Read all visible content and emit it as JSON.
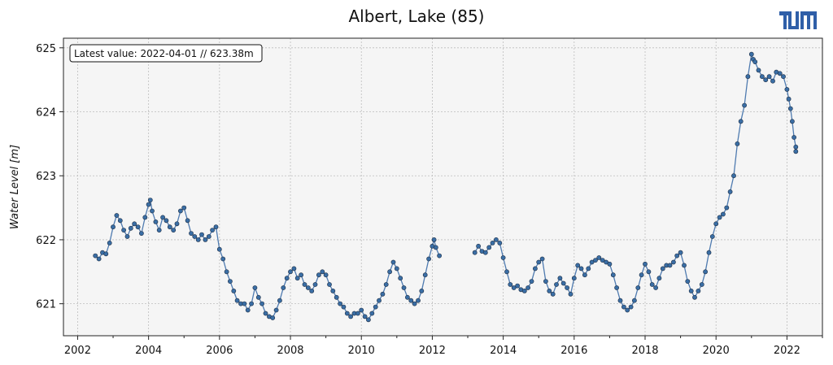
{
  "chart_data": {
    "type": "scatter",
    "title": "Albert, Lake (85)",
    "xlabel": "",
    "ylabel": "Water Level [m]",
    "annotation": "Latest value: 2022-04-01 // 623.38m",
    "xlim": [
      2001.6,
      2023.0
    ],
    "ylim": [
      620.5,
      625.15
    ],
    "x_ticks": [
      2002,
      2004,
      2006,
      2008,
      2010,
      2012,
      2014,
      2016,
      2018,
      2020,
      2022
    ],
    "y_ticks": [
      621,
      622,
      623,
      624,
      625
    ],
    "grid": true,
    "colors": {
      "line": "#4f7bb0",
      "marker": "#3a6ea5",
      "marker_edge": "#1f2f45",
      "axes_bg": "#f5f5f5",
      "grid": "#bdbdbd"
    },
    "series": [
      {
        "segments": [
          [
            [
              2002.5,
              621.75
            ],
            [
              2002.6,
              621.7
            ],
            [
              2002.7,
              621.8
            ],
            [
              2002.8,
              621.78
            ],
            [
              2002.9,
              621.95
            ],
            [
              2003.0,
              622.2
            ],
            [
              2003.1,
              622.38
            ],
            [
              2003.2,
              622.3
            ],
            [
              2003.3,
              622.15
            ],
            [
              2003.4,
              622.05
            ],
            [
              2003.5,
              622.18
            ],
            [
              2003.6,
              622.25
            ],
            [
              2003.7,
              622.2
            ],
            [
              2003.8,
              622.1
            ],
            [
              2003.9,
              622.35
            ],
            [
              2004.0,
              622.55
            ],
            [
              2004.05,
              622.62
            ],
            [
              2004.1,
              622.45
            ],
            [
              2004.2,
              622.28
            ],
            [
              2004.3,
              622.15
            ],
            [
              2004.4,
              622.35
            ],
            [
              2004.5,
              622.3
            ],
            [
              2004.6,
              622.2
            ],
            [
              2004.7,
              622.15
            ],
            [
              2004.8,
              622.25
            ],
            [
              2004.9,
              622.45
            ],
            [
              2005.0,
              622.5
            ],
            [
              2005.1,
              622.3
            ],
            [
              2005.2,
              622.1
            ],
            [
              2005.3,
              622.05
            ],
            [
              2005.4,
              622.0
            ],
            [
              2005.5,
              622.08
            ],
            [
              2005.6,
              622.0
            ],
            [
              2005.7,
              622.05
            ],
            [
              2005.8,
              622.15
            ],
            [
              2005.9,
              622.2
            ],
            [
              2006.0,
              621.85
            ],
            [
              2006.1,
              621.7
            ],
            [
              2006.2,
              621.5
            ],
            [
              2006.3,
              621.35
            ],
            [
              2006.4,
              621.2
            ],
            [
              2006.5,
              621.05
            ],
            [
              2006.6,
              621.0
            ],
            [
              2006.7,
              621.0
            ],
            [
              2006.8,
              620.9
            ],
            [
              2006.9,
              621.0
            ],
            [
              2007.0,
              621.25
            ],
            [
              2007.1,
              621.1
            ],
            [
              2007.2,
              621.0
            ],
            [
              2007.3,
              620.85
            ],
            [
              2007.4,
              620.8
            ],
            [
              2007.5,
              620.78
            ],
            [
              2007.6,
              620.9
            ],
            [
              2007.7,
              621.05
            ],
            [
              2007.8,
              621.25
            ],
            [
              2007.9,
              621.4
            ],
            [
              2008.0,
              621.5
            ],
            [
              2008.1,
              621.55
            ],
            [
              2008.2,
              621.4
            ],
            [
              2008.3,
              621.45
            ],
            [
              2008.4,
              621.3
            ],
            [
              2008.5,
              621.25
            ],
            [
              2008.6,
              621.2
            ],
            [
              2008.7,
              621.3
            ],
            [
              2008.8,
              621.45
            ],
            [
              2008.9,
              621.5
            ],
            [
              2009.0,
              621.45
            ],
            [
              2009.1,
              621.3
            ],
            [
              2009.2,
              621.2
            ],
            [
              2009.3,
              621.1
            ],
            [
              2009.4,
              621.0
            ],
            [
              2009.5,
              620.95
            ],
            [
              2009.6,
              620.85
            ],
            [
              2009.7,
              620.8
            ],
            [
              2009.8,
              620.85
            ],
            [
              2009.9,
              620.85
            ],
            [
              2010.0,
              620.9
            ],
            [
              2010.1,
              620.8
            ],
            [
              2010.2,
              620.75
            ],
            [
              2010.3,
              620.85
            ],
            [
              2010.4,
              620.95
            ],
            [
              2010.5,
              621.05
            ],
            [
              2010.6,
              621.15
            ],
            [
              2010.7,
              621.3
            ],
            [
              2010.8,
              621.5
            ],
            [
              2010.9,
              621.65
            ],
            [
              2011.0,
              621.55
            ],
            [
              2011.1,
              621.4
            ],
            [
              2011.2,
              621.25
            ],
            [
              2011.3,
              621.1
            ],
            [
              2011.4,
              621.05
            ],
            [
              2011.5,
              621.0
            ],
            [
              2011.6,
              621.05
            ],
            [
              2011.7,
              621.2
            ],
            [
              2011.8,
              621.45
            ],
            [
              2011.9,
              621.7
            ],
            [
              2012.0,
              621.9
            ],
            [
              2012.05,
              622.0
            ],
            [
              2012.1,
              621.88
            ],
            [
              2012.2,
              621.75
            ]
          ],
          [
            [
              2013.2,
              621.8
            ],
            [
              2013.3,
              621.9
            ],
            [
              2013.4,
              621.82
            ],
            [
              2013.5,
              621.8
            ],
            [
              2013.6,
              621.88
            ],
            [
              2013.7,
              621.95
            ],
            [
              2013.8,
              622.0
            ],
            [
              2013.9,
              621.95
            ],
            [
              2014.0,
              621.72
            ],
            [
              2014.1,
              621.5
            ],
            [
              2014.2,
              621.3
            ],
            [
              2014.3,
              621.25
            ],
            [
              2014.4,
              621.28
            ],
            [
              2014.5,
              621.22
            ],
            [
              2014.6,
              621.2
            ],
            [
              2014.7,
              621.25
            ],
            [
              2014.8,
              621.35
            ],
            [
              2014.9,
              621.55
            ],
            [
              2015.0,
              621.65
            ],
            [
              2015.1,
              621.7
            ],
            [
              2015.2,
              621.35
            ],
            [
              2015.3,
              621.2
            ],
            [
              2015.4,
              621.15
            ],
            [
              2015.5,
              621.3
            ],
            [
              2015.6,
              621.4
            ],
            [
              2015.7,
              621.32
            ],
            [
              2015.8,
              621.25
            ],
            [
              2015.9,
              621.15
            ],
            [
              2016.0,
              621.4
            ],
            [
              2016.1,
              621.6
            ],
            [
              2016.2,
              621.55
            ],
            [
              2016.3,
              621.45
            ],
            [
              2016.4,
              621.55
            ],
            [
              2016.5,
              621.65
            ],
            [
              2016.6,
              621.68
            ],
            [
              2016.7,
              621.72
            ],
            [
              2016.8,
              621.68
            ],
            [
              2016.9,
              621.65
            ],
            [
              2017.0,
              621.62
            ],
            [
              2017.1,
              621.45
            ],
            [
              2017.2,
              621.25
            ],
            [
              2017.3,
              621.05
            ],
            [
              2017.4,
              620.95
            ],
            [
              2017.5,
              620.9
            ],
            [
              2017.6,
              620.95
            ],
            [
              2017.7,
              621.05
            ],
            [
              2017.8,
              621.25
            ],
            [
              2017.9,
              621.45
            ],
            [
              2018.0,
              621.62
            ],
            [
              2018.1,
              621.5
            ],
            [
              2018.2,
              621.3
            ],
            [
              2018.3,
              621.25
            ],
            [
              2018.4,
              621.4
            ],
            [
              2018.5,
              621.55
            ],
            [
              2018.6,
              621.6
            ],
            [
              2018.7,
              621.6
            ],
            [
              2018.8,
              621.65
            ],
            [
              2018.9,
              621.75
            ],
            [
              2019.0,
              621.8
            ],
            [
              2019.1,
              621.6
            ],
            [
              2019.2,
              621.35
            ],
            [
              2019.3,
              621.2
            ],
            [
              2019.4,
              621.1
            ],
            [
              2019.5,
              621.2
            ],
            [
              2019.6,
              621.3
            ],
            [
              2019.7,
              621.5
            ],
            [
              2019.8,
              621.8
            ],
            [
              2019.9,
              622.05
            ],
            [
              2020.0,
              622.25
            ],
            [
              2020.1,
              622.35
            ],
            [
              2020.2,
              622.4
            ],
            [
              2020.3,
              622.5
            ],
            [
              2020.4,
              622.75
            ],
            [
              2020.5,
              623.0
            ],
            [
              2020.6,
              623.5
            ],
            [
              2020.7,
              623.85
            ],
            [
              2020.8,
              624.1
            ],
            [
              2020.9,
              624.55
            ],
            [
              2021.0,
              624.9
            ],
            [
              2021.05,
              624.82
            ],
            [
              2021.1,
              624.78
            ],
            [
              2021.2,
              624.65
            ],
            [
              2021.3,
              624.55
            ],
            [
              2021.4,
              624.5
            ],
            [
              2021.5,
              624.55
            ],
            [
              2021.6,
              624.48
            ],
            [
              2021.7,
              624.62
            ],
            [
              2021.8,
              624.6
            ],
            [
              2021.9,
              624.55
            ],
            [
              2022.0,
              624.35
            ],
            [
              2022.05,
              624.2
            ],
            [
              2022.1,
              624.05
            ],
            [
              2022.15,
              623.85
            ],
            [
              2022.2,
              623.6
            ],
            [
              2022.25,
              623.45
            ],
            [
              2022.25,
              623.38
            ]
          ]
        ]
      }
    ]
  },
  "logo": {
    "text": "TUM"
  }
}
